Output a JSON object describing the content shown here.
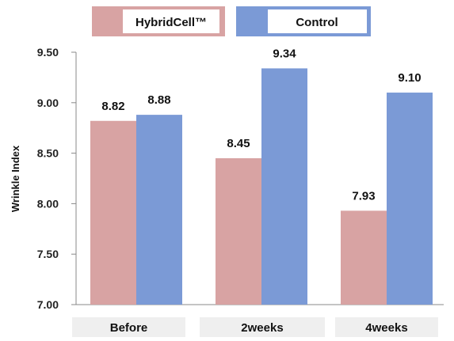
{
  "chart_data": {
    "type": "bar",
    "ylabel": "Wrinkle Index",
    "xlabel": "",
    "ylim": [
      7.0,
      9.5
    ],
    "yticks": [
      "7.00",
      "7.50",
      "8.00",
      "8.50",
      "9.00",
      "9.50"
    ],
    "categories": [
      "Before",
      "2weeks",
      "4weeks"
    ],
    "series": [
      {
        "name": "HybridCell™",
        "values": [
          8.82,
          8.45,
          7.93
        ],
        "labels": [
          "8.82",
          "8.45",
          "7.93"
        ],
        "color": "#d8a3a3"
      },
      {
        "name": "Control",
        "values": [
          8.88,
          9.34,
          9.1
        ],
        "labels": [
          "8.88",
          "9.34",
          "9.10"
        ],
        "color": "#7b9ad6"
      }
    ],
    "legend_position": "top",
    "grid": false
  }
}
